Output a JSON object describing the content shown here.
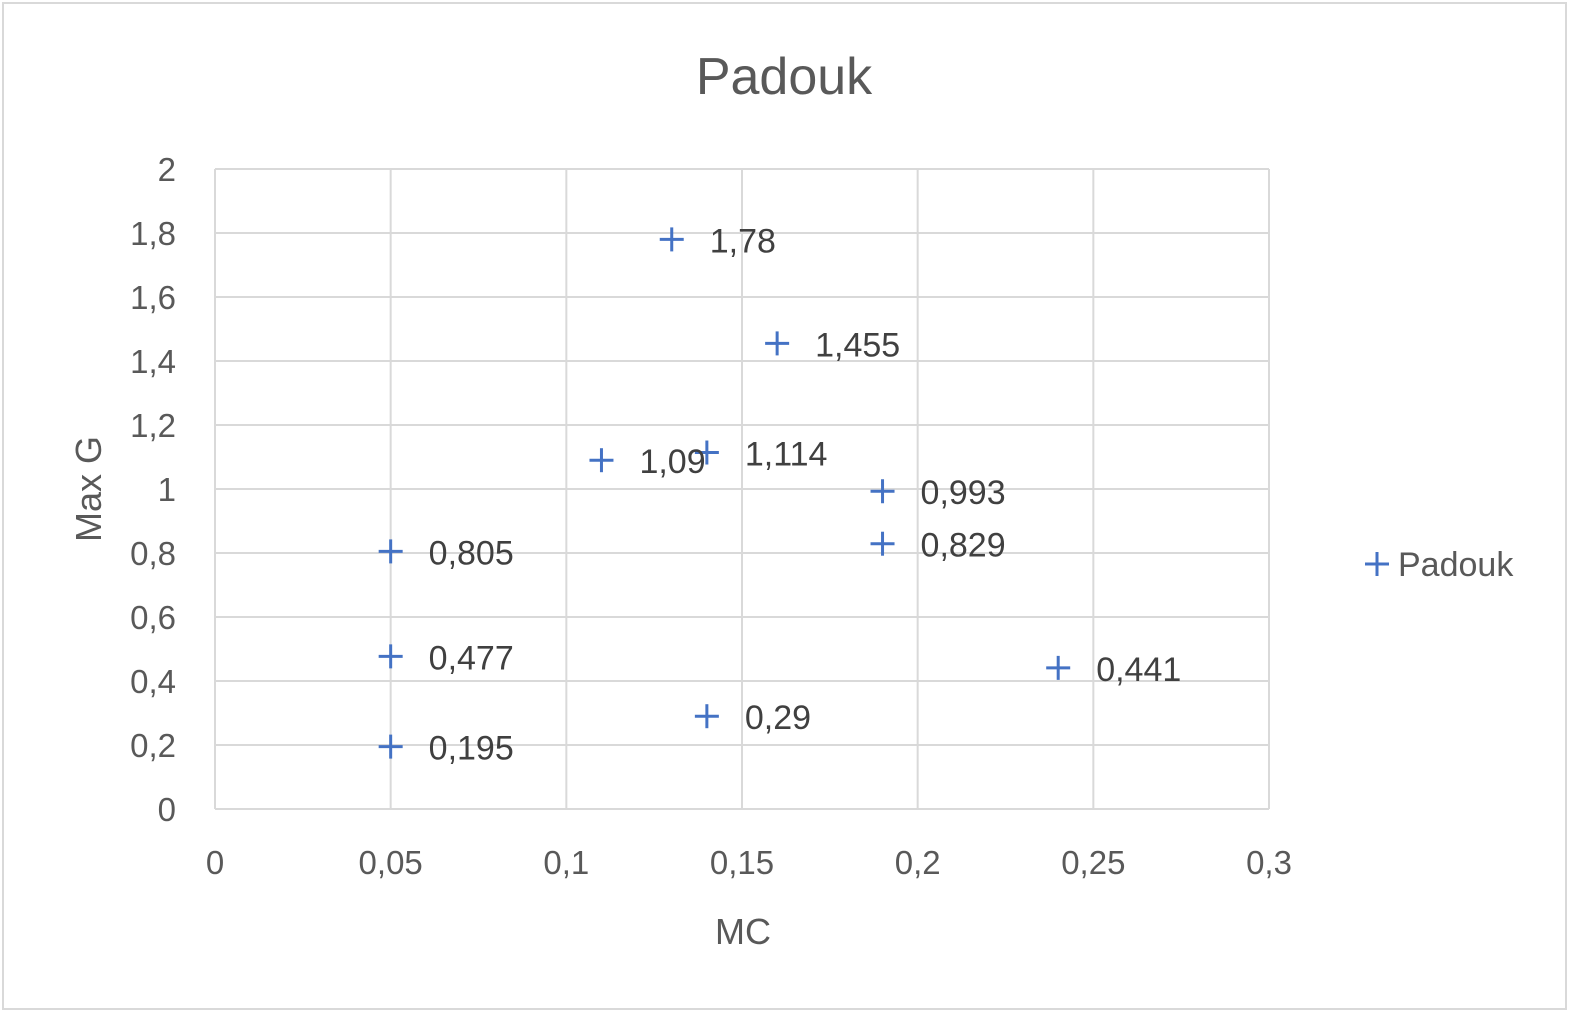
{
  "chart_data": {
    "type": "scatter",
    "title": "Padouk",
    "xlabel": "MC",
    "ylabel": "Max G",
    "xlim": [
      0,
      0.3
    ],
    "ylim": [
      0,
      2
    ],
    "x_ticks": [
      0,
      0.05,
      0.1,
      0.15,
      0.2,
      0.25,
      0.3
    ],
    "y_ticks": [
      0,
      0.2,
      0.4,
      0.6,
      0.8,
      1,
      1.2,
      1.4,
      1.6,
      1.8,
      2
    ],
    "x_tick_labels": [
      "0",
      "0,05",
      "0,1",
      "0,15",
      "0,2",
      "0,25",
      "0,3"
    ],
    "y_tick_labels": [
      "0",
      "0,2",
      "0,4",
      "0,6",
      "0,8",
      "1",
      "1,2",
      "1,4",
      "1,6",
      "1,8",
      "2"
    ],
    "grid": true,
    "legend_position": "right",
    "marker": "plus",
    "series": [
      {
        "name": "Padouk",
        "color": "#4472c4",
        "points": [
          {
            "x": 0.13,
            "y": 1.78,
            "label": "1,78"
          },
          {
            "x": 0.16,
            "y": 1.455,
            "label": "1,455"
          },
          {
            "x": 0.11,
            "y": 1.09,
            "label": "1,09"
          },
          {
            "x": 0.14,
            "y": 1.114,
            "label": "1,114"
          },
          {
            "x": 0.19,
            "y": 0.993,
            "label": "0,993"
          },
          {
            "x": 0.19,
            "y": 0.829,
            "label": "0,829"
          },
          {
            "x": 0.05,
            "y": 0.805,
            "label": "0,805"
          },
          {
            "x": 0.05,
            "y": 0.477,
            "label": "0,477"
          },
          {
            "x": 0.24,
            "y": 0.441,
            "label": "0,441"
          },
          {
            "x": 0.14,
            "y": 0.29,
            "label": "0,29"
          },
          {
            "x": 0.05,
            "y": 0.195,
            "label": "0,195"
          }
        ]
      }
    ]
  }
}
